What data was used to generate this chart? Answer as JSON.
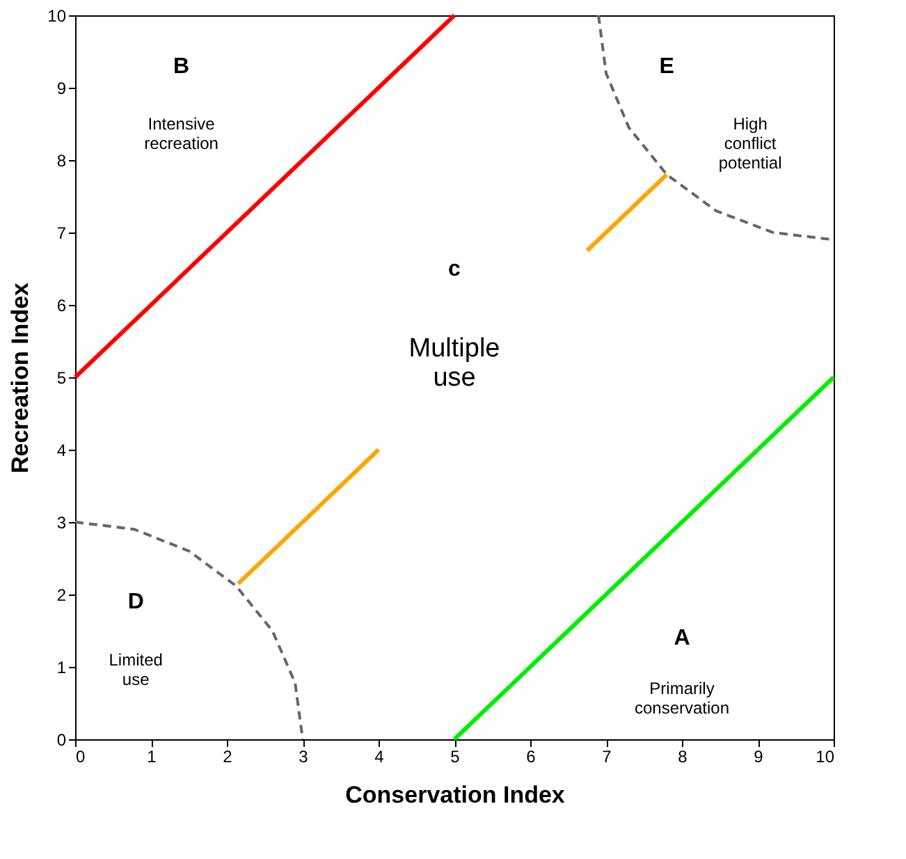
{
  "chart_data": {
    "type": "line",
    "xlabel": "Conservation Index",
    "ylabel": "Recreation Index",
    "xlim": [
      0,
      10
    ],
    "ylim": [
      0,
      10
    ],
    "xticks": [
      0,
      1,
      2,
      3,
      4,
      5,
      6,
      7,
      8,
      9,
      10
    ],
    "yticks": [
      0,
      1,
      2,
      3,
      4,
      5,
      6,
      7,
      8,
      9,
      10
    ],
    "grid": false,
    "marker": "none",
    "series": [
      {
        "color": "#ff0000",
        "x": [
          0,
          5
        ],
        "values": [
          5,
          10
        ],
        "line_style": "solid"
      },
      {
        "color": "#00ee00",
        "x": [
          5,
          10
        ],
        "values": [
          0,
          5
        ],
        "line_style": "solid"
      },
      {
        "color": "#ffa500",
        "x": [
          2.15,
          4
        ],
        "values": [
          2.15,
          4
        ],
        "line_style": "solid"
      },
      {
        "color": "#ffa500",
        "x": [
          6.75,
          7.8
        ],
        "values": [
          6.75,
          7.8
        ],
        "line_style": "solid"
      },
      {
        "color": "#666666",
        "x": [
          0,
          0.78,
          1.5,
          2.12,
          2.6,
          2.9,
          3
        ],
        "values": [
          3,
          2.9,
          2.6,
          2.12,
          1.5,
          0.78,
          0
        ],
        "line_style": "dashed"
      },
      {
        "color": "#666666",
        "x": [
          6.9,
          7.0,
          7.3,
          7.8,
          8.45,
          9.2,
          10
        ],
        "values": [
          10,
          9.2,
          8.45,
          7.8,
          7.3,
          7.0,
          6.9
        ],
        "line_style": "dashed"
      }
    ],
    "annotations": [
      "B",
      "Intensive\nrecreation",
      "E",
      "High\nconflict\npotential",
      "c",
      "Multiple\nuse",
      "D",
      "Limited\nuse",
      "A",
      "Primarily\nconservation"
    ]
  }
}
